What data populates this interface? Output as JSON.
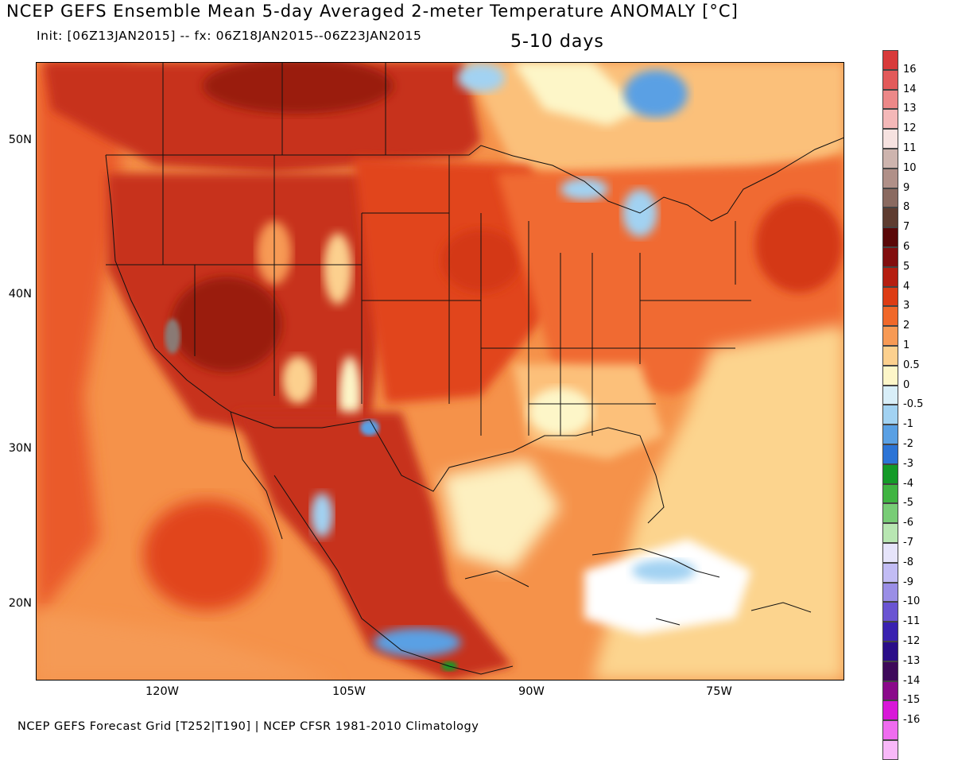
{
  "title": "NCEP GEFS Ensemble Mean 5-day Averaged 2-meter Temperature ANOMALY [°C]",
  "subtitle": "Init: [06Z13JAN2015] -- fx: 06Z18JAN2015--06Z23JAN2015",
  "period": "5-10 days",
  "footer": "NCEP GEFS Forecast Grid [T252|T190] | NCEP CFSR 1981-2010 Climatology",
  "lat_labels": [
    "50N",
    "40N",
    "30N",
    "20N"
  ],
  "lon_labels": [
    "120W",
    "105W",
    "90W",
    "75W"
  ],
  "colorbar": [
    {
      "label": "16",
      "color": "#d83a3a"
    },
    {
      "label": "14",
      "color": "#e25a5a"
    },
    {
      "label": "13",
      "color": "#ec8888"
    },
    {
      "label": "12",
      "color": "#f4b8b8"
    },
    {
      "label": "11",
      "color": "#f6e2e0"
    },
    {
      "label": "10",
      "color": "#cdb4ae"
    },
    {
      "label": "9",
      "color": "#b09088"
    },
    {
      "label": "8",
      "color": "#8a6a60"
    },
    {
      "label": "7",
      "color": "#5e3c30"
    },
    {
      "label": "6",
      "color": "#5a0808"
    },
    {
      "label": "5",
      "color": "#820e0e"
    },
    {
      "label": "4",
      "color": "#b51e10"
    },
    {
      "label": "3",
      "color": "#dd3c14"
    },
    {
      "label": "2",
      "color": "#f0682a"
    },
    {
      "label": "1",
      "color": "#f79a55"
    },
    {
      "label": "0.5",
      "color": "#fcd08e"
    },
    {
      "label": "0",
      "color": "#fdf6c8"
    },
    {
      "label": "-0.5",
      "color": "#d8eef8"
    },
    {
      "label": "-1",
      "color": "#a2d2f2"
    },
    {
      "label": "-2",
      "color": "#5aa0e4"
    },
    {
      "label": "-3",
      "color": "#2c74d6"
    },
    {
      "label": "-4",
      "color": "#149a28"
    },
    {
      "label": "-5",
      "color": "#40b442"
    },
    {
      "label": "-6",
      "color": "#78cc76"
    },
    {
      "label": "-7",
      "color": "#b8e6b2"
    },
    {
      "label": "-8",
      "color": "#e6e4fa"
    },
    {
      "label": "-9",
      "color": "#c2bcf4"
    },
    {
      "label": "-10",
      "color": "#9a8ee6"
    },
    {
      "label": "-11",
      "color": "#6a54d2"
    },
    {
      "label": "-12",
      "color": "#3a22b0"
    },
    {
      "label": "-13",
      "color": "#2a0e88"
    },
    {
      "label": "-14",
      "color": "#3e0a5a"
    },
    {
      "label": "-15",
      "color": "#8a0a8a"
    },
    {
      "label": "-16",
      "color": "#d818d8"
    },
    {
      "label": "",
      "color": "#ef6cef"
    },
    {
      "label": "",
      "color": "#f8b8f8"
    }
  ]
}
